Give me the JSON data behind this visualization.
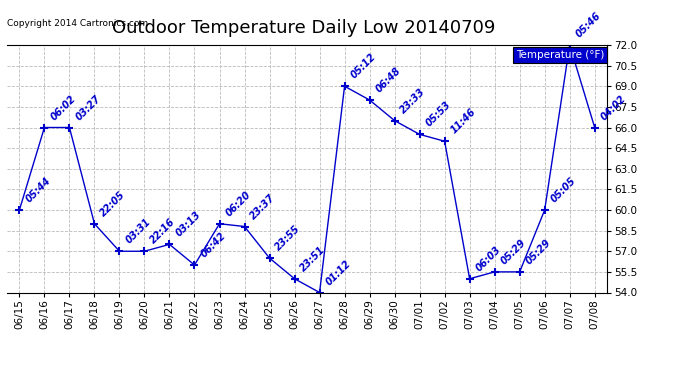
{
  "title": "Outdoor Temperature Daily Low 20140709",
  "copyright": "Copyright 2014 Cartronics.com",
  "legend_label": "Temperature (°F)",
  "x_labels": [
    "06/15",
    "06/16",
    "06/17",
    "06/18",
    "06/19",
    "06/20",
    "06/21",
    "06/22",
    "06/23",
    "06/24",
    "06/25",
    "06/26",
    "06/27",
    "06/28",
    "06/29",
    "06/30",
    "07/01",
    "07/02",
    "07/03",
    "07/04",
    "07/05",
    "07/06",
    "07/07",
    "07/08"
  ],
  "y_values": [
    60.0,
    66.0,
    66.0,
    59.0,
    57.0,
    57.0,
    57.5,
    56.0,
    59.0,
    58.8,
    56.5,
    55.0,
    54.0,
    69.0,
    68.0,
    66.5,
    65.5,
    65.0,
    55.0,
    55.5,
    55.5,
    60.0,
    72.0,
    66.0
  ],
  "point_labels": [
    "05:44",
    "06:02",
    "03:27",
    "22:05",
    "03:31",
    "22:16",
    "03:13",
    "06:42",
    "06:20",
    "23:37",
    "23:55",
    "23:51",
    "01:12",
    "05:12",
    "06:48",
    "23:33",
    "05:53",
    "11:46",
    "06:03",
    "05:29",
    "05:29",
    "05:05",
    "05:46",
    "04:02"
  ],
  "line_color": "#0000cc",
  "marker_color": "#0000cc",
  "bg_color": "#ffffff",
  "grid_color": "#bbbbbb",
  "ylim_min": 54.0,
  "ylim_max": 72.0,
  "ytick_step": 1.5,
  "title_fontsize": 13,
  "label_fontsize": 7.0,
  "tick_fontsize": 7.5
}
